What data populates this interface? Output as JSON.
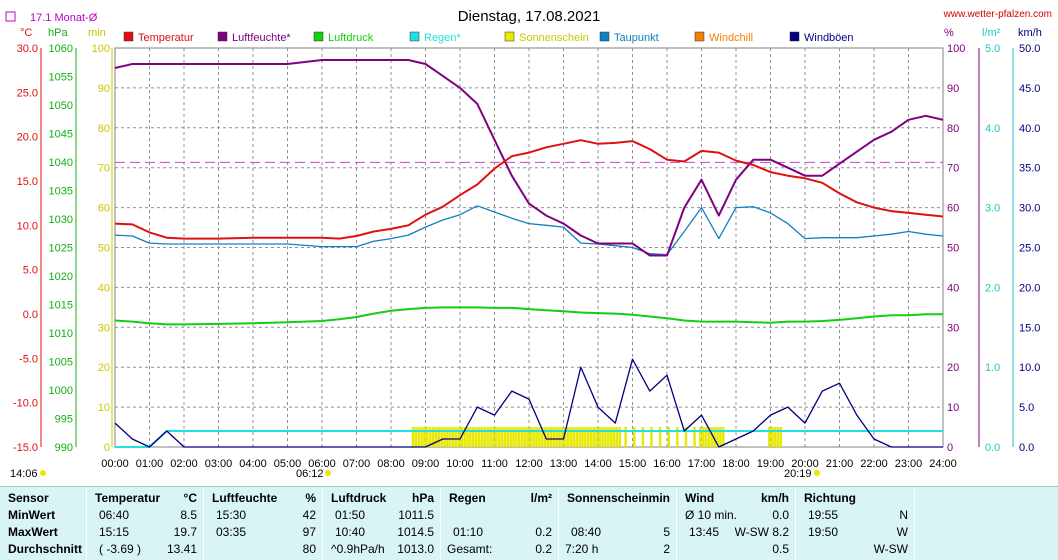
{
  "title": "Dienstag, 17.08.2021",
  "site": "www.wetter-pfalzen.com",
  "monthly_avg_label": "17.1 Monat-Ø",
  "legend": [
    {
      "label": "Temperatur",
      "color": "#e01010"
    },
    {
      "label": "Luftfeuchte*",
      "color": "#800080"
    },
    {
      "label": "Luftdruck",
      "color": "#10d010"
    },
    {
      "label": "Regen*",
      "color": "#20e0e0"
    },
    {
      "label": "Sonnenschein",
      "color": "#e8e800"
    },
    {
      "label": "Taupunkt",
      "color": "#1080c0"
    },
    {
      "label": "Windchill",
      "color": "#f08000"
    },
    {
      "label": "Windböen",
      "color": "#000080"
    }
  ],
  "axes": {
    "temp": {
      "unit": "°C",
      "ticks": [
        "30.0",
        "25.0",
        "20.0",
        "15.0",
        "10.0",
        "5.0",
        "0.0",
        "-5.0",
        "-10.0",
        "-15.0"
      ],
      "color": "#e01010"
    },
    "pressure": {
      "unit": "hPa",
      "ticks": [
        "1060",
        "1055",
        "1050",
        "1045",
        "1040",
        "1035",
        "1030",
        "1025",
        "1020",
        "1015",
        "1010",
        "1005",
        "1000",
        "995",
        "990"
      ],
      "color": "#10b010"
    },
    "sun": {
      "unit": "min",
      "ticks": [
        "100",
        "90",
        "80",
        "70",
        "60",
        "50",
        "40",
        "30",
        "20",
        "10",
        "0"
      ],
      "color": "#c8c800"
    },
    "humidity": {
      "unit": "%",
      "ticks": [
        "100",
        "90",
        "80",
        "70",
        "60",
        "50",
        "40",
        "30",
        "20",
        "10",
        "0"
      ],
      "color": "#800080"
    },
    "rain": {
      "unit": "l/m²",
      "ticks": [
        "5.0",
        "4.0",
        "3.0",
        "2.0",
        "1.0",
        "0.0"
      ],
      "color": "#20c8c8"
    },
    "wind": {
      "unit": "km/h",
      "ticks": [
        "50.0",
        "45.0",
        "40.0",
        "35.0",
        "30.0",
        "25.0",
        "20.0",
        "15.0",
        "10.0",
        "5.0",
        "0.0"
      ],
      "color": "#000080"
    },
    "time": [
      "00:00",
      "01:00",
      "02:00",
      "03:00",
      "04:00",
      "05:00",
      "06:00",
      "07:00",
      "08:00",
      "09:00",
      "10:00",
      "11:00",
      "12:00",
      "13:00",
      "14:00",
      "15:00",
      "16:00",
      "17:00",
      "18:00",
      "19:00",
      "20:00",
      "21:00",
      "22:00",
      "23:00",
      "24:00"
    ]
  },
  "sun_events": {
    "sunrise_label": "06:12",
    "sunset_label": "20:19",
    "left_label": "14:06"
  },
  "chart_data": {
    "type": "line",
    "x_hours": [
      0,
      0.5,
      1,
      1.5,
      2,
      3,
      4,
      5,
      6,
      6.5,
      7,
      7.5,
      8,
      8.5,
      9,
      9.5,
      10,
      10.5,
      11,
      11.5,
      12,
      12.5,
      13,
      13.5,
      14,
      14.5,
      15,
      15.5,
      16,
      16.5,
      17,
      17.5,
      18,
      18.5,
      19,
      19.5,
      20,
      20.5,
      21,
      21.5,
      22,
      22.5,
      23,
      23.5,
      24
    ],
    "monthly_avg_temp": 17.1,
    "series": [
      {
        "name": "Temperatur",
        "axis": "temp",
        "values": [
          10.2,
          10.1,
          9.2,
          8.6,
          8.5,
          8.5,
          8.6,
          8.6,
          8.6,
          8.5,
          8.8,
          9.3,
          9.6,
          10.0,
          11.2,
          12.1,
          13.4,
          14.6,
          16.4,
          17.8,
          18.2,
          18.8,
          19.2,
          19.6,
          19.2,
          19.3,
          19.5,
          18.6,
          17.4,
          17.2,
          18.4,
          18.2,
          17.3,
          16.8,
          16.0,
          15.6,
          15.3,
          14.8,
          13.6,
          12.6,
          12.0,
          11.6,
          11.4,
          11.2,
          11.0
        ]
      },
      {
        "name": "Luftfeuchte*",
        "axis": "humidity",
        "values": [
          95,
          96,
          96,
          96,
          96,
          96,
          96,
          96,
          97,
          97,
          97,
          97,
          97,
          97,
          96,
          93,
          90,
          86,
          77,
          68,
          61,
          58,
          56,
          53,
          51,
          51,
          51,
          48,
          48,
          60,
          67,
          58,
          67,
          72,
          72,
          70,
          68,
          68,
          71,
          74,
          77,
          79,
          82,
          83,
          82
        ]
      },
      {
        "name": "Luftdruck",
        "axis": "pressure",
        "values": [
          1012.2,
          1012.0,
          1011.7,
          1011.5,
          1011.5,
          1011.6,
          1011.7,
          1011.9,
          1012.1,
          1012.4,
          1012.8,
          1013.4,
          1013.9,
          1014.2,
          1014.4,
          1014.5,
          1014.5,
          1014.5,
          1014.4,
          1014.4,
          1014.2,
          1014.0,
          1013.8,
          1013.6,
          1013.5,
          1013.4,
          1013.2,
          1012.9,
          1012.6,
          1012.2,
          1012.0,
          1012.0,
          1012.0,
          1011.9,
          1011.8,
          1012.0,
          1012.0,
          1012.1,
          1012.3,
          1012.6,
          1012.9,
          1013.1,
          1013.1,
          1013.3,
          1013.3
        ]
      },
      {
        "name": "Regen*",
        "axis": "rain",
        "values": [
          0.0,
          0.0,
          0.0,
          0.2,
          0.2,
          0.2,
          0.2,
          0.2,
          0.2,
          0.2,
          0.2,
          0.2,
          0.2,
          0.2,
          0.2,
          0.2,
          0.2,
          0.2,
          0.2,
          0.2,
          0.2,
          0.2,
          0.2,
          0.2,
          0.2,
          0.2,
          0.2,
          0.2,
          0.2,
          0.2,
          0.2,
          0.2,
          0.2,
          0.2,
          0.2,
          0.2,
          0.2,
          0.2,
          0.2,
          0.2,
          0.2,
          0.2,
          0.2,
          0.2,
          0.2
        ]
      },
      {
        "name": "Taupunkt",
        "axis": "temp",
        "values": [
          8.9,
          8.8,
          8.0,
          7.9,
          7.9,
          7.9,
          7.9,
          7.9,
          7.6,
          7.6,
          7.6,
          8.2,
          8.5,
          8.9,
          9.8,
          10.6,
          11.2,
          12.2,
          11.5,
          10.8,
          10.2,
          10.0,
          9.8,
          8.0,
          7.9,
          7.7,
          7.5,
          6.8,
          6.7,
          9.3,
          12.0,
          8.5,
          12.0,
          12.1,
          11.4,
          10.2,
          8.5,
          8.6,
          8.6,
          8.6,
          8.8,
          9.0,
          9.3,
          9.0,
          8.8
        ]
      },
      {
        "name": "Windböen",
        "axis": "wind",
        "values": [
          3,
          1,
          0,
          2,
          0,
          0,
          0,
          0,
          0,
          0,
          0,
          0,
          0,
          0,
          0,
          1,
          1,
          5,
          4,
          7,
          6,
          1,
          1,
          10,
          5,
          3,
          11,
          7,
          9,
          2,
          4,
          0,
          1,
          2,
          4,
          5,
          3,
          7,
          8,
          4,
          1,
          0,
          0,
          0,
          0
        ]
      }
    ],
    "sunshine_minutes": {
      "bars_from_hour": 8.6,
      "bars_to_hour": 19.3,
      "value_min": 5
    }
  },
  "stats": {
    "sensor": {
      "header": "Sensor",
      "rows": [
        "MinWert",
        "MaxWert",
        "Durchschnitt"
      ]
    },
    "temperatur": {
      "header": "Temperatur",
      "unit": "°C",
      "rows": [
        [
          "06:40",
          "8.5"
        ],
        [
          "15:15",
          "19.7"
        ],
        [
          "( -3.69 )",
          "13.41"
        ]
      ]
    },
    "luftfeuchte": {
      "header": "Luftfeuchte",
      "unit": "%",
      "rows": [
        [
          "15:30",
          "42"
        ],
        [
          "03:35",
          "97"
        ],
        [
          "",
          "80"
        ]
      ]
    },
    "luftdruck": {
      "header": "Luftdruck",
      "unit": "hPa",
      "rows": [
        [
          "01:50",
          "1011.5"
        ],
        [
          "10:40",
          "1014.5"
        ],
        [
          "^0.9hPa/h",
          "1013.0"
        ]
      ]
    },
    "regen": {
      "header": "Regen",
      "unit": "l/m²",
      "rows": [
        [
          "",
          ""
        ],
        [
          "01:10",
          "0.2"
        ],
        [
          "Gesamt:",
          "0.2"
        ]
      ]
    },
    "sonne": {
      "header": "Sonnenschein",
      "unit": "min",
      "rows": [
        [
          "",
          ""
        ],
        [
          "08:40",
          "5"
        ],
        [
          "7:20 h",
          "2"
        ]
      ]
    },
    "wind": {
      "header": "Wind",
      "unit": "km/h",
      "rows": [
        [
          "Ø 10 min.",
          "",
          "0.0"
        ],
        [
          "13:45",
          "W-SW",
          "8.2"
        ],
        [
          "",
          "",
          "0.5"
        ]
      ]
    },
    "richtung": {
      "header": "Richtung",
      "rows": [
        [
          "19:55",
          "N"
        ],
        [
          "19:50",
          "W"
        ],
        [
          "",
          "W-SW"
        ]
      ]
    }
  }
}
